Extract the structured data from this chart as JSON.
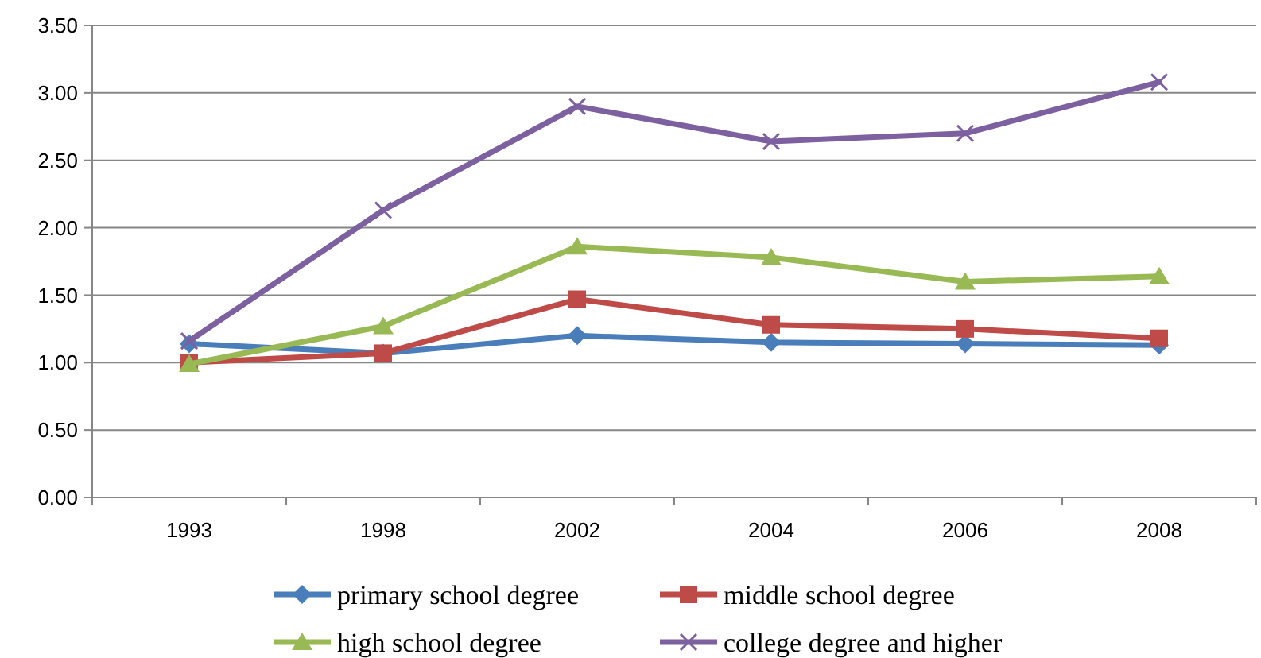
{
  "chart_data": {
    "type": "line",
    "categories": [
      "1993",
      "1998",
      "2002",
      "2004",
      "2006",
      "2008"
    ],
    "ylim": [
      0,
      3.5
    ],
    "yticks": [
      {
        "value": 0,
        "label": "0.00"
      },
      {
        "value": 0.5,
        "label": "0.50"
      },
      {
        "value": 1,
        "label": "1.00"
      },
      {
        "value": 1.5,
        "label": "1.50"
      },
      {
        "value": 2,
        "label": "2.00"
      },
      {
        "value": 2.5,
        "label": "2.50"
      },
      {
        "value": 3,
        "label": "3.00"
      },
      {
        "value": 3.5,
        "label": "3.50"
      }
    ],
    "grid": "y",
    "legend": "bottom",
    "line_style": "solid",
    "series": [
      {
        "name": "primary school degree",
        "color": "#4a7ebb",
        "marker": "diamond",
        "values": [
          1.14,
          1.07,
          1.2,
          1.15,
          1.14,
          1.13
        ]
      },
      {
        "name": "middle school degree",
        "color": "#be4b48",
        "marker": "square",
        "values": [
          1.0,
          1.07,
          1.47,
          1.28,
          1.25,
          1.18
        ]
      },
      {
        "name": "high school degree",
        "color": "#98b954",
        "marker": "triangle",
        "values": [
          0.99,
          1.27,
          1.86,
          1.78,
          1.6,
          1.64
        ]
      },
      {
        "name": "college degree and higher",
        "color": "#7d60a0",
        "marker": "cross",
        "values": [
          1.16,
          2.13,
          2.9,
          2.64,
          2.7,
          3.08
        ]
      }
    ]
  }
}
